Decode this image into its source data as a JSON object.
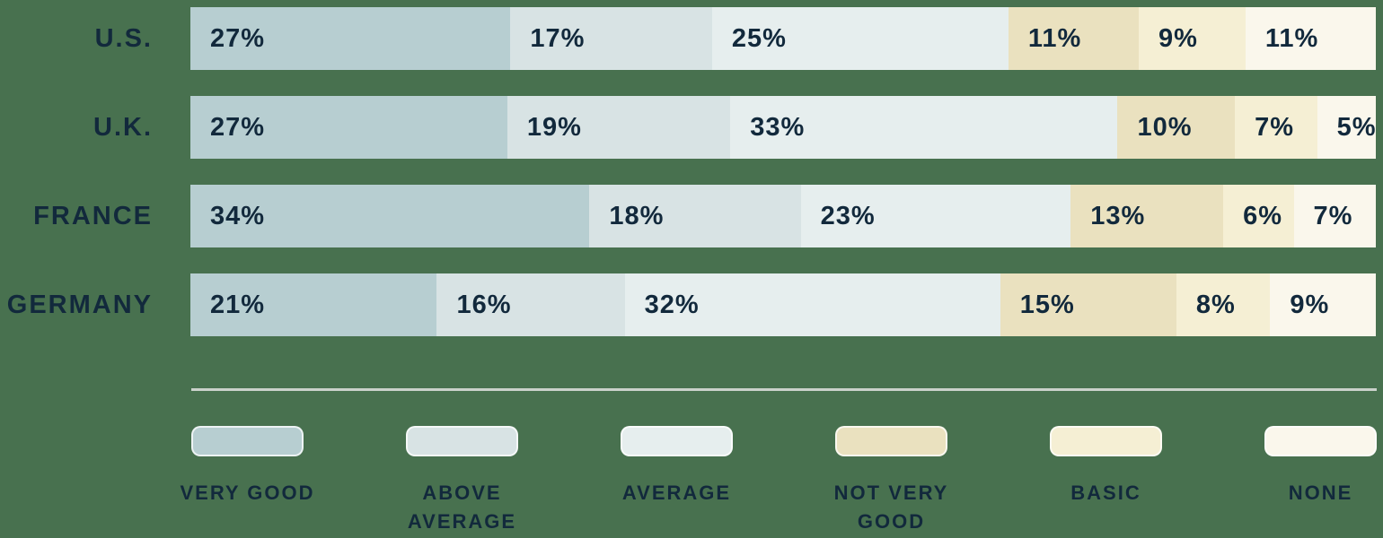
{
  "chart_data": {
    "type": "bar",
    "subtype": "horizontal-stacked",
    "title": "",
    "categories": [
      "U.S.",
      "U.K.",
      "FRANCE",
      "GERMANY"
    ],
    "series": [
      {
        "name": "VERY GOOD",
        "color": "#B7CED1",
        "values": [
          27,
          27,
          34,
          21
        ]
      },
      {
        "name": "ABOVE AVERAGE",
        "color": "#D8E3E4",
        "values": [
          17,
          19,
          18,
          16
        ]
      },
      {
        "name": "AVERAGE",
        "color": "#E6EEEE",
        "values": [
          25,
          33,
          23,
          32
        ]
      },
      {
        "name": "NOT VERY GOOD",
        "color": "#EAE1BF",
        "values": [
          11,
          10,
          13,
          15
        ]
      },
      {
        "name": "BASIC",
        "color": "#F5EFD4",
        "values": [
          9,
          7,
          6,
          8
        ]
      },
      {
        "name": "NONE",
        "color": "#FAF7EC",
        "values": [
          11,
          5,
          7,
          9
        ]
      }
    ],
    "value_label_format": "{v}%",
    "legend_position": "bottom",
    "grid": false,
    "colors": {
      "background": "#48714F",
      "text": "#12293C",
      "divider": "#CBD2CB"
    }
  }
}
